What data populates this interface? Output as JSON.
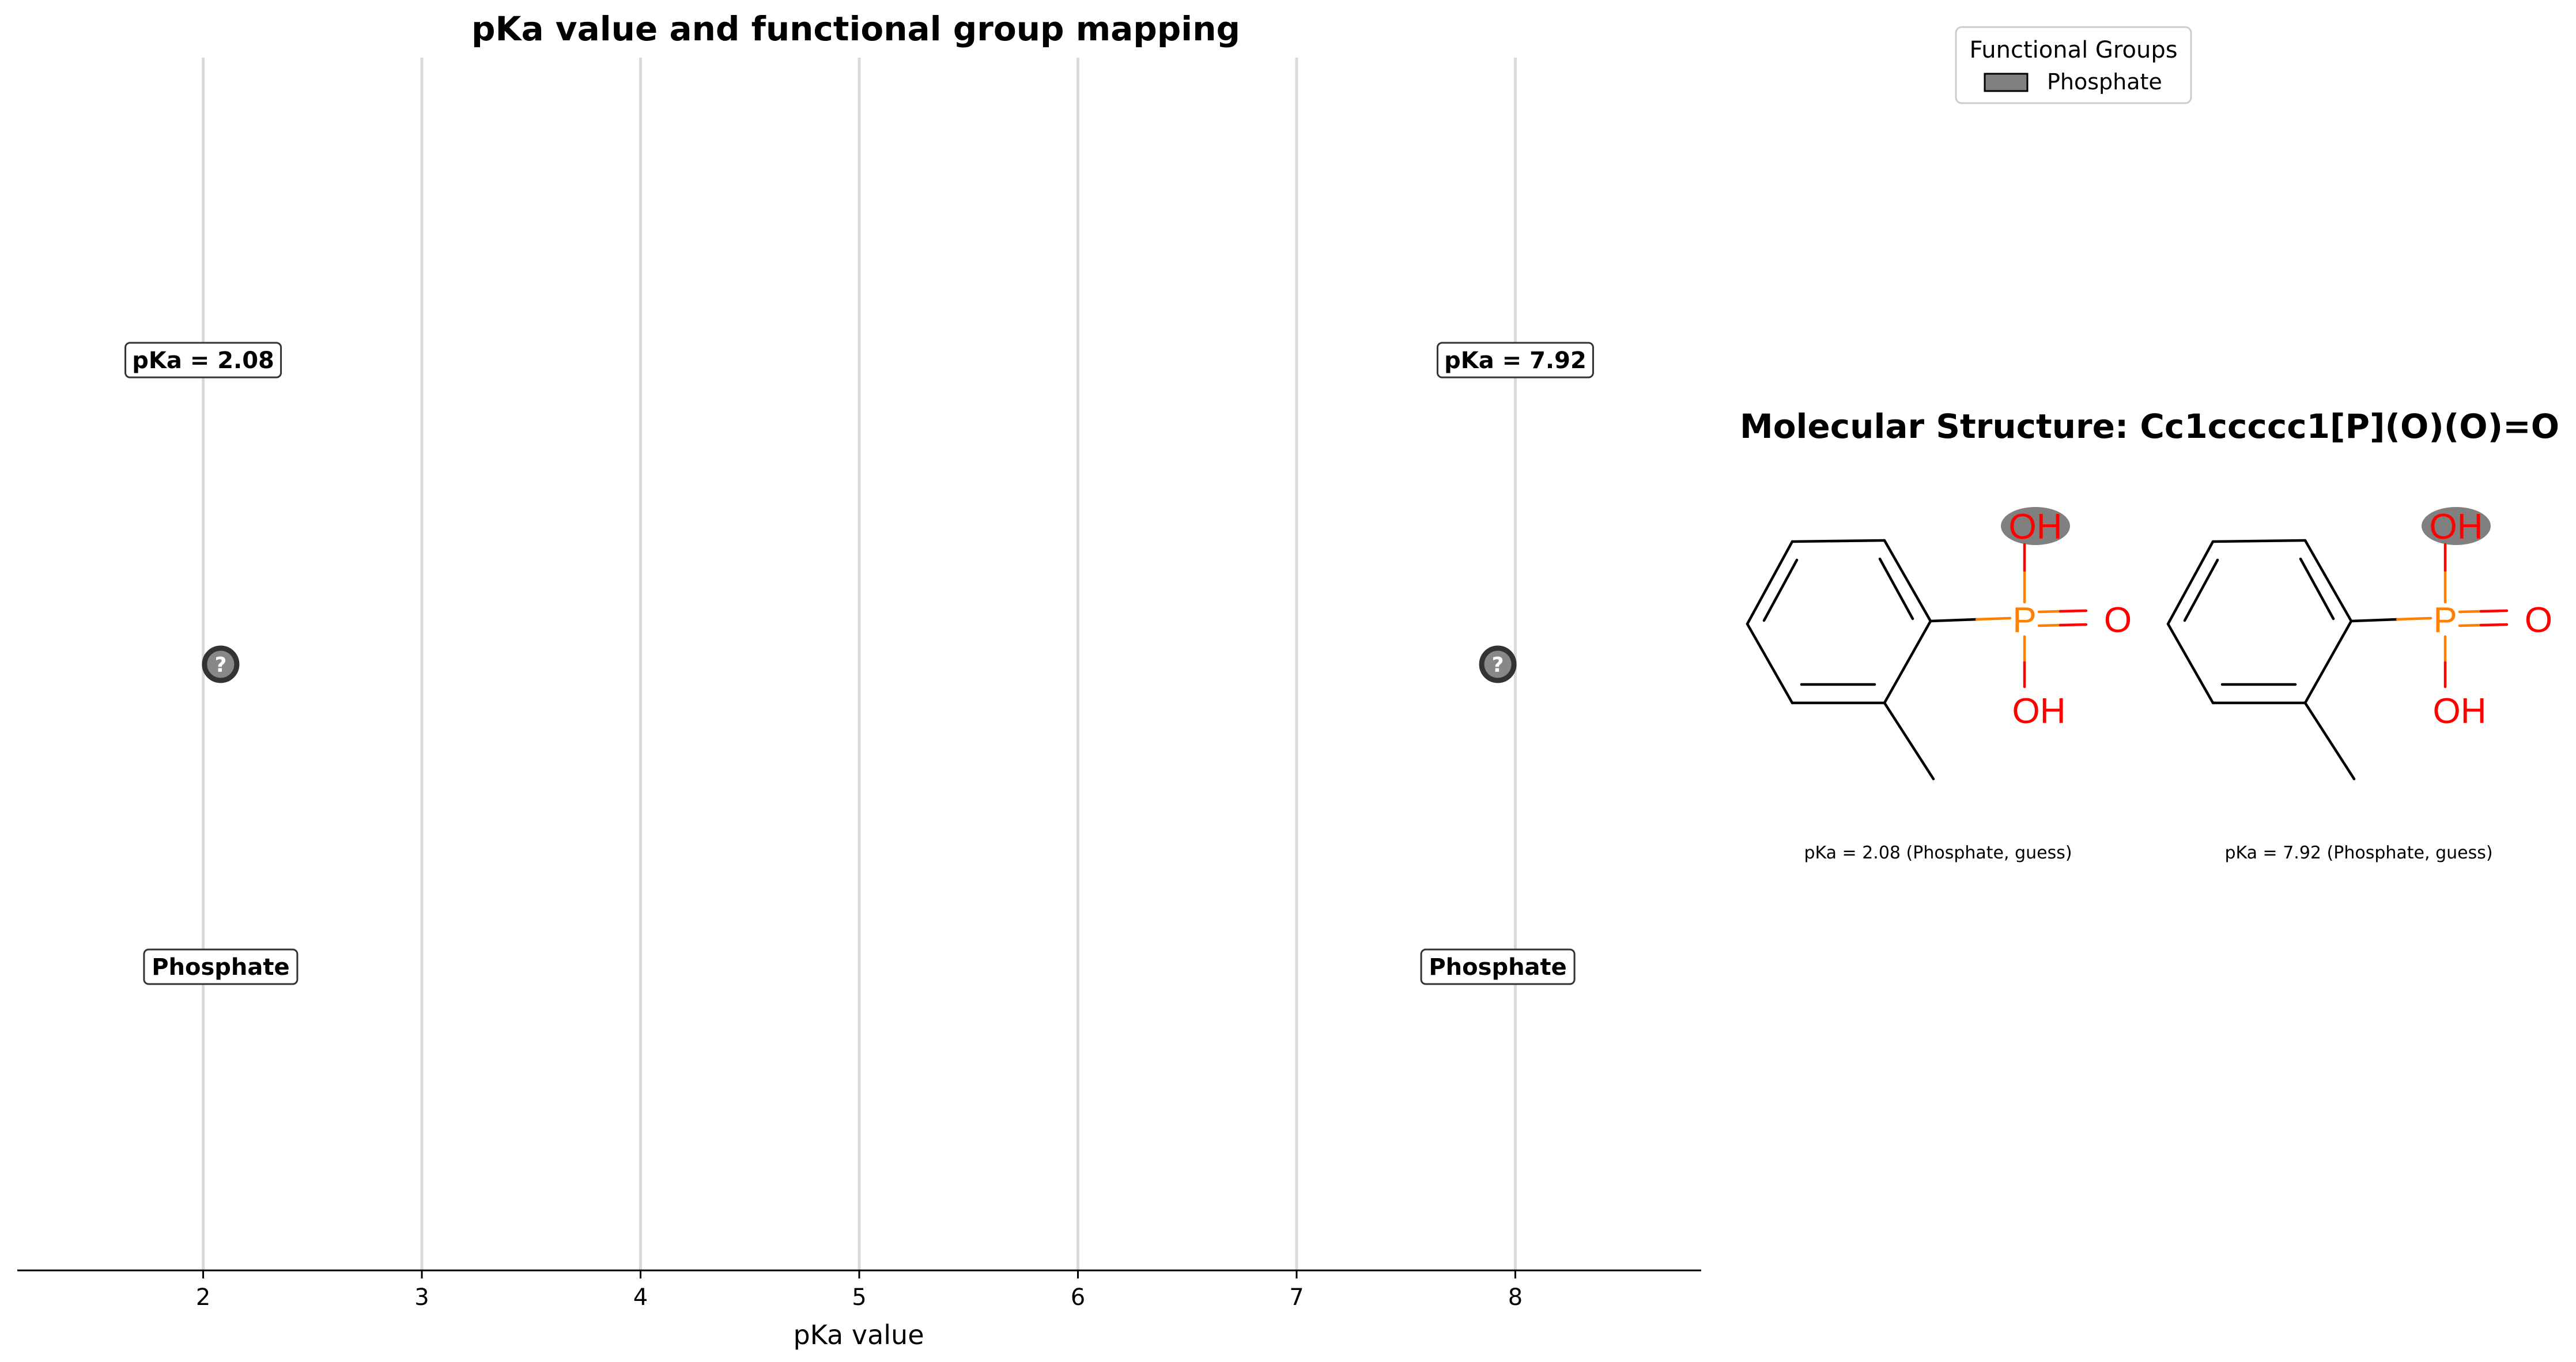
{
  "chart_data": [
    {
      "type": "scatter",
      "title": "pKa value and functional group mapping",
      "xlabel": "pKa value",
      "ylabel": "",
      "xlim": [
        1.15,
        8.85
      ],
      "xticks": [
        2,
        3,
        4,
        5,
        6,
        7,
        8
      ],
      "grid": "vertical",
      "points": [
        {
          "x": 2.08,
          "marker_text": "?",
          "value_label": "pKa = 2.08",
          "group_label": "Phosphate",
          "color": "#888888"
        },
        {
          "x": 7.92,
          "marker_text": "?",
          "value_label": "pKa = 7.92",
          "group_label": "Phosphate",
          "color": "#888888"
        }
      ]
    }
  ],
  "legend": {
    "title": "Functional Groups",
    "placement": "top-right",
    "entries": [
      {
        "label": "Phosphate",
        "color": "#808080"
      }
    ]
  },
  "structure_panel": {
    "title": "Molecular Structure: Cc1ccccc1[P](O)(O)=O",
    "molecules": [
      {
        "caption": "pKa = 2.08 (Phosphate, guess)",
        "atoms": {
          "p": "P",
          "o_double": "O",
          "oh_top": "OH",
          "oh_bottom": "OH"
        },
        "highlight": "oh_top"
      },
      {
        "caption": "pKa = 7.92 (Phosphate, guess)",
        "atoms": {
          "p": "P",
          "o_double": "O",
          "oh_top": "OH",
          "oh_bottom": "OH"
        },
        "highlight": "oh_top"
      }
    ],
    "colors": {
      "bond": "#000000",
      "phosphorus": "#FF8000",
      "oxygen": "#FF0000",
      "highlight": "#808080"
    }
  }
}
